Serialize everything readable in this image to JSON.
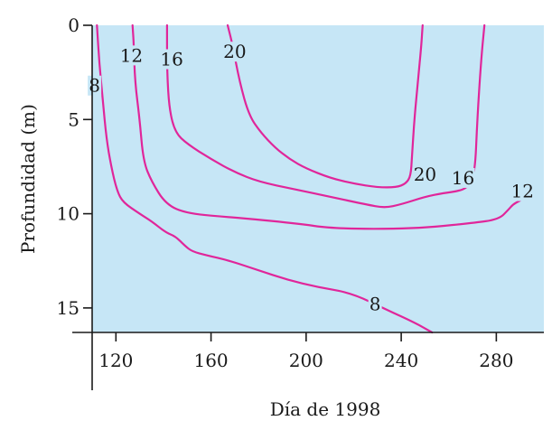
{
  "chart_data": {
    "type": "contour",
    "xlabel": "Día de 1998",
    "ylabel": "Profundidad (m)",
    "xlim": [
      110,
      300
    ],
    "ylim": [
      0,
      16.3
    ],
    "y_inverted": true,
    "x_ticks": [
      120,
      160,
      200,
      240,
      280
    ],
    "y_ticks": [
      0,
      5,
      10,
      15
    ],
    "background_color": "#c6e6f6",
    "line_color": "#e0269a",
    "contours": [
      {
        "level": 8,
        "label": "8",
        "label_positions": [
          [
            111,
            3.2
          ],
          [
            229,
            14.8
          ]
        ],
        "points": [
          [
            112,
            0
          ],
          [
            113,
            2
          ],
          [
            114.5,
            4
          ],
          [
            116,
            6
          ],
          [
            118,
            7.5
          ],
          [
            120.5,
            8.8
          ],
          [
            123,
            9.4
          ],
          [
            130,
            10
          ],
          [
            135,
            10.4
          ],
          [
            141,
            11
          ],
          [
            145,
            11.2
          ],
          [
            149,
            11.7
          ],
          [
            152,
            12
          ],
          [
            158,
            12.2
          ],
          [
            168,
            12.5
          ],
          [
            180,
            13
          ],
          [
            192,
            13.5
          ],
          [
            205,
            13.9
          ],
          [
            219,
            14.2
          ],
          [
            234,
            15.1
          ],
          [
            246,
            15.8
          ],
          [
            253,
            16.3
          ]
        ]
      },
      {
        "level": 12,
        "label": "12",
        "label_positions": [
          [
            126.5,
            1.6
          ],
          [
            291,
            8.8
          ]
        ],
        "points": [
          [
            127,
            0
          ],
          [
            127.5,
            1
          ],
          [
            128,
            3
          ],
          [
            130,
            5
          ],
          [
            131.5,
            7.2
          ],
          [
            135,
            8.3
          ],
          [
            141,
            9.5
          ],
          [
            150,
            10
          ],
          [
            170,
            10.2
          ],
          [
            195,
            10.5
          ],
          [
            212,
            10.8
          ],
          [
            245,
            10.8
          ],
          [
            270,
            10.5
          ],
          [
            281,
            10.3
          ],
          [
            285,
            9.8
          ],
          [
            287,
            9.5
          ],
          [
            290,
            9.3
          ]
        ]
      },
      {
        "level": 16,
        "label": "16",
        "label_positions": [
          [
            143.5,
            1.8
          ],
          [
            266,
            8.1
          ]
        ],
        "points": [
          [
            141.5,
            0
          ],
          [
            141.5,
            2.5
          ],
          [
            142.5,
            4.5
          ],
          [
            145,
            5.7
          ],
          [
            150,
            6.3
          ],
          [
            160,
            7.1
          ],
          [
            170,
            7.8
          ],
          [
            180,
            8.3
          ],
          [
            195,
            8.7
          ],
          [
            210,
            9.1
          ],
          [
            225,
            9.5
          ],
          [
            233,
            9.7
          ],
          [
            240,
            9.5
          ],
          [
            250,
            9.1
          ],
          [
            258,
            8.9
          ],
          [
            264,
            8.8
          ],
          [
            268,
            8.6
          ],
          [
            271,
            7.9
          ],
          [
            272,
            5
          ],
          [
            273.5,
            2
          ],
          [
            275,
            0
          ]
        ]
      },
      {
        "level": 20,
        "label": "20",
        "label_positions": [
          [
            170,
            1.4
          ],
          [
            250,
            7.9
          ]
        ],
        "points": [
          [
            167,
            0
          ],
          [
            169,
            1
          ],
          [
            172,
            3
          ],
          [
            176,
            4.8
          ],
          [
            181,
            5.7
          ],
          [
            187,
            6.5
          ],
          [
            193,
            7.1
          ],
          [
            200,
            7.6
          ],
          [
            210,
            8.1
          ],
          [
            220,
            8.4
          ],
          [
            230,
            8.6
          ],
          [
            238,
            8.6
          ],
          [
            242,
            8.4
          ],
          [
            244,
            8
          ],
          [
            244.5,
            7
          ],
          [
            245.5,
            5
          ],
          [
            247,
            3
          ],
          [
            248.5,
            1
          ],
          [
            249,
            0
          ]
        ]
      }
    ]
  }
}
